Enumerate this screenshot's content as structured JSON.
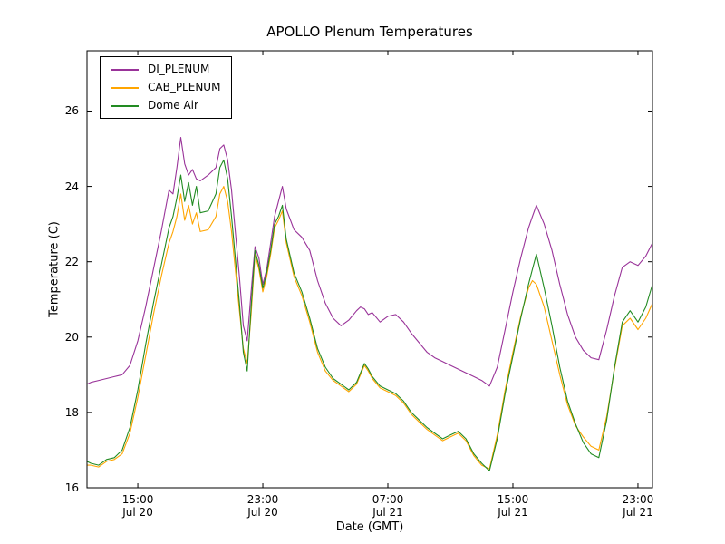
{
  "chart_data": {
    "type": "line",
    "title": "APOLLO Plenum Temperatures",
    "xlabel": "Date (GMT)",
    "ylabel": "Temperature (C)",
    "x_unit": "hours since Jul 20 00:00 GMT",
    "xlim": [
      11.75,
      47.93
    ],
    "ylim": [
      16,
      27.6
    ],
    "grid": false,
    "legend_position": "upper left",
    "y_ticks": [
      16,
      18,
      20,
      22,
      24,
      26
    ],
    "x_ticks": [
      {
        "pos": 15,
        "time": "15:00",
        "date": "Jul 20"
      },
      {
        "pos": 23,
        "time": "23:00",
        "date": "Jul 20"
      },
      {
        "pos": 31,
        "time": "07:00",
        "date": "Jul 21"
      },
      {
        "pos": 39,
        "time": "15:00",
        "date": "Jul 21"
      },
      {
        "pos": 47,
        "time": "23:00",
        "date": "Jul 21"
      }
    ],
    "x": [
      11.75,
      12,
      12.5,
      13,
      13.5,
      14,
      14.5,
      15,
      15.5,
      16,
      16.5,
      17,
      17.25,
      17.5,
      17.75,
      18,
      18.25,
      18.5,
      18.75,
      19,
      19.5,
      20,
      20.25,
      20.5,
      20.75,
      21,
      21.5,
      21.75,
      22,
      22.25,
      22.5,
      22.75,
      23,
      23.25,
      23.5,
      23.75,
      24,
      24.25,
      24.5,
      25,
      25.5,
      26,
      26.5,
      27,
      27.5,
      28,
      28.5,
      29,
      29.25,
      29.5,
      29.75,
      30,
      30.5,
      31,
      31.5,
      32,
      32.5,
      33,
      33.5,
      34,
      34.5,
      35,
      35.5,
      36,
      36.5,
      37,
      37.5,
      38,
      38.5,
      39,
      39.5,
      40,
      40.25,
      40.5,
      41,
      41.5,
      42,
      42.5,
      43,
      43.5,
      44,
      44.5,
      45,
      45.5,
      46,
      46.5,
      47,
      47.5,
      47.93
    ],
    "series": [
      {
        "name": "DI_PLENUM",
        "color": "#993399",
        "values": [
          18.75,
          18.8,
          18.85,
          18.9,
          18.95,
          19.0,
          19.25,
          19.9,
          20.8,
          21.8,
          22.8,
          23.9,
          23.8,
          24.5,
          25.3,
          24.6,
          24.3,
          24.45,
          24.2,
          24.15,
          24.3,
          24.5,
          25.0,
          25.1,
          24.7,
          23.9,
          21.6,
          20.3,
          19.9,
          21.2,
          22.4,
          22.1,
          21.4,
          21.8,
          22.5,
          23.2,
          23.6,
          24.0,
          23.4,
          22.85,
          22.65,
          22.3,
          21.5,
          20.9,
          20.5,
          20.3,
          20.45,
          20.7,
          20.8,
          20.75,
          20.6,
          20.65,
          20.4,
          20.55,
          20.6,
          20.4,
          20.1,
          19.85,
          19.6,
          19.45,
          19.35,
          19.25,
          19.15,
          19.05,
          18.95,
          18.85,
          18.7,
          19.2,
          20.2,
          21.2,
          22.1,
          22.9,
          23.2,
          23.5,
          23.0,
          22.3,
          21.4,
          20.6,
          20.0,
          19.65,
          19.45,
          19.4,
          20.2,
          21.1,
          21.85,
          22.0,
          21.9,
          22.15,
          22.5
        ]
      },
      {
        "name": "CAB_PLENUM",
        "color": "#FFA500",
        "values": [
          16.6,
          16.6,
          16.55,
          16.7,
          16.75,
          16.9,
          17.45,
          18.4,
          19.5,
          20.6,
          21.6,
          22.5,
          22.8,
          23.2,
          23.8,
          23.1,
          23.5,
          23.0,
          23.3,
          22.8,
          22.85,
          23.2,
          23.8,
          24.0,
          23.6,
          22.8,
          20.7,
          19.7,
          19.3,
          20.6,
          22.2,
          21.8,
          21.2,
          21.6,
          22.2,
          22.9,
          23.1,
          23.35,
          22.5,
          21.6,
          21.1,
          20.4,
          19.6,
          19.1,
          18.85,
          18.7,
          18.55,
          18.75,
          19.0,
          19.25,
          19.1,
          18.9,
          18.65,
          18.55,
          18.45,
          18.25,
          17.95,
          17.75,
          17.55,
          17.4,
          17.25,
          17.35,
          17.45,
          17.25,
          16.85,
          16.6,
          16.5,
          17.4,
          18.6,
          19.6,
          20.55,
          21.3,
          21.5,
          21.4,
          20.8,
          19.9,
          19.0,
          18.2,
          17.65,
          17.35,
          17.1,
          17.0,
          17.9,
          19.15,
          20.3,
          20.5,
          20.2,
          20.5,
          20.9
        ]
      },
      {
        "name": "Dome Air",
        "color": "#228B22",
        "values": [
          16.7,
          16.65,
          16.6,
          16.75,
          16.8,
          17.0,
          17.6,
          18.6,
          19.8,
          20.9,
          21.9,
          22.9,
          23.2,
          23.7,
          24.3,
          23.6,
          24.1,
          23.5,
          24.0,
          23.3,
          23.35,
          23.8,
          24.5,
          24.7,
          24.2,
          23.2,
          20.9,
          19.6,
          19.1,
          20.8,
          22.3,
          21.9,
          21.3,
          21.7,
          22.3,
          23.0,
          23.2,
          23.5,
          22.6,
          21.7,
          21.2,
          20.5,
          19.7,
          19.2,
          18.9,
          18.75,
          18.6,
          18.8,
          19.05,
          19.3,
          19.15,
          18.95,
          18.7,
          18.6,
          18.5,
          18.3,
          18.0,
          17.8,
          17.6,
          17.45,
          17.3,
          17.4,
          17.5,
          17.3,
          16.9,
          16.65,
          16.45,
          17.3,
          18.5,
          19.5,
          20.5,
          21.4,
          21.8,
          22.2,
          21.3,
          20.3,
          19.2,
          18.3,
          17.7,
          17.2,
          16.9,
          16.8,
          17.8,
          19.2,
          20.4,
          20.7,
          20.4,
          20.8,
          21.4
        ]
      }
    ]
  }
}
